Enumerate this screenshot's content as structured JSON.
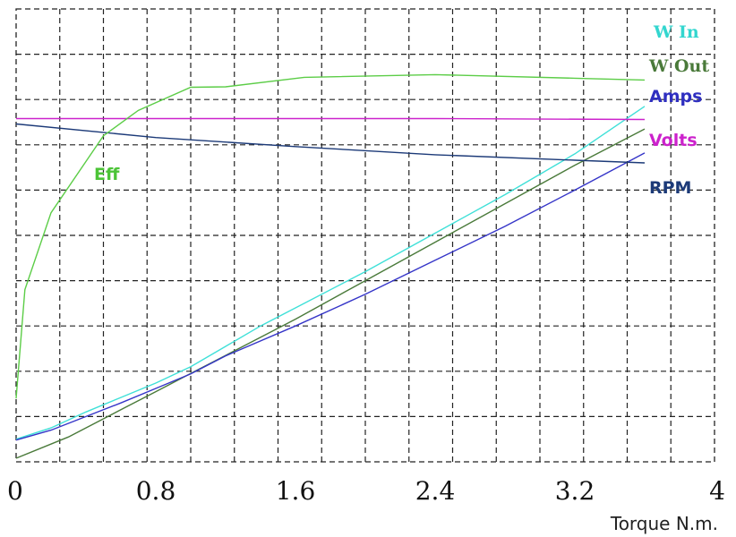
{
  "chart_data": {
    "type": "line",
    "xlabel": "Torque N.m.",
    "xlim": [
      0,
      4
    ],
    "x_ticks": [
      "0",
      "0.8",
      "1.6",
      "2.4",
      "3.2",
      "4"
    ],
    "grid": true,
    "grid_style": "dashed",
    "y_axis_labels_visible": false,
    "series": [
      {
        "name": "W In",
        "color": "#3fe0d8",
        "x": [
          0,
          0.2,
          0.4,
          0.6,
          0.8,
          1.0,
          1.2,
          1.4,
          1.6,
          2.0,
          2.4,
          2.8,
          3.2,
          3.6
        ],
        "y": [
          5.0,
          7.5,
          11.0,
          14.2,
          17.4,
          21.0,
          25.5,
          30.0,
          34.0,
          42.0,
          50.5,
          59.0,
          68.0,
          78.5
        ]
      },
      {
        "name": "W Out",
        "color": "#4a7a3a",
        "x": [
          0,
          0.3,
          0.6,
          0.8,
          1.0,
          1.2,
          1.6,
          2.0,
          2.4,
          2.8,
          3.2,
          3.6
        ],
        "y": [
          0.8,
          5.5,
          11.5,
          15.5,
          19.5,
          23.5,
          31.5,
          40.0,
          48.5,
          57.0,
          65.5,
          73.5
        ]
      },
      {
        "name": "Amps",
        "color": "#3535c8",
        "x": [
          0,
          0.2,
          0.4,
          0.6,
          0.8,
          1.0,
          1.2,
          1.6,
          2.0,
          2.4,
          2.8,
          3.2,
          3.6
        ],
        "y": [
          4.8,
          7.0,
          10.0,
          13.0,
          16.2,
          19.4,
          23.4,
          30.0,
          37.0,
          44.5,
          52.0,
          60.0,
          68.2
        ]
      },
      {
        "name": "Volts",
        "color": "#cc22cc",
        "x": [
          0,
          1.2,
          2.4,
          3.6
        ],
        "y": [
          75.8,
          75.8,
          75.8,
          75.6
        ]
      },
      {
        "name": "RPM",
        "color": "#1c3a78",
        "x": [
          0,
          0.8,
          1.6,
          2.4,
          3.2,
          3.6
        ],
        "y": [
          74.6,
          71.6,
          69.6,
          67.8,
          66.6,
          66.0
        ]
      },
      {
        "name": "Eff",
        "color": "#5ccd47",
        "x": [
          0,
          0.05,
          0.2,
          0.5,
          0.7,
          1.0,
          1.2,
          1.65,
          2.4,
          3.2,
          3.6
        ],
        "y": [
          14.0,
          38.0,
          55.0,
          72.0,
          77.6,
          82.7,
          82.8,
          84.9,
          85.5,
          84.7,
          84.3
        ]
      }
    ]
  }
}
